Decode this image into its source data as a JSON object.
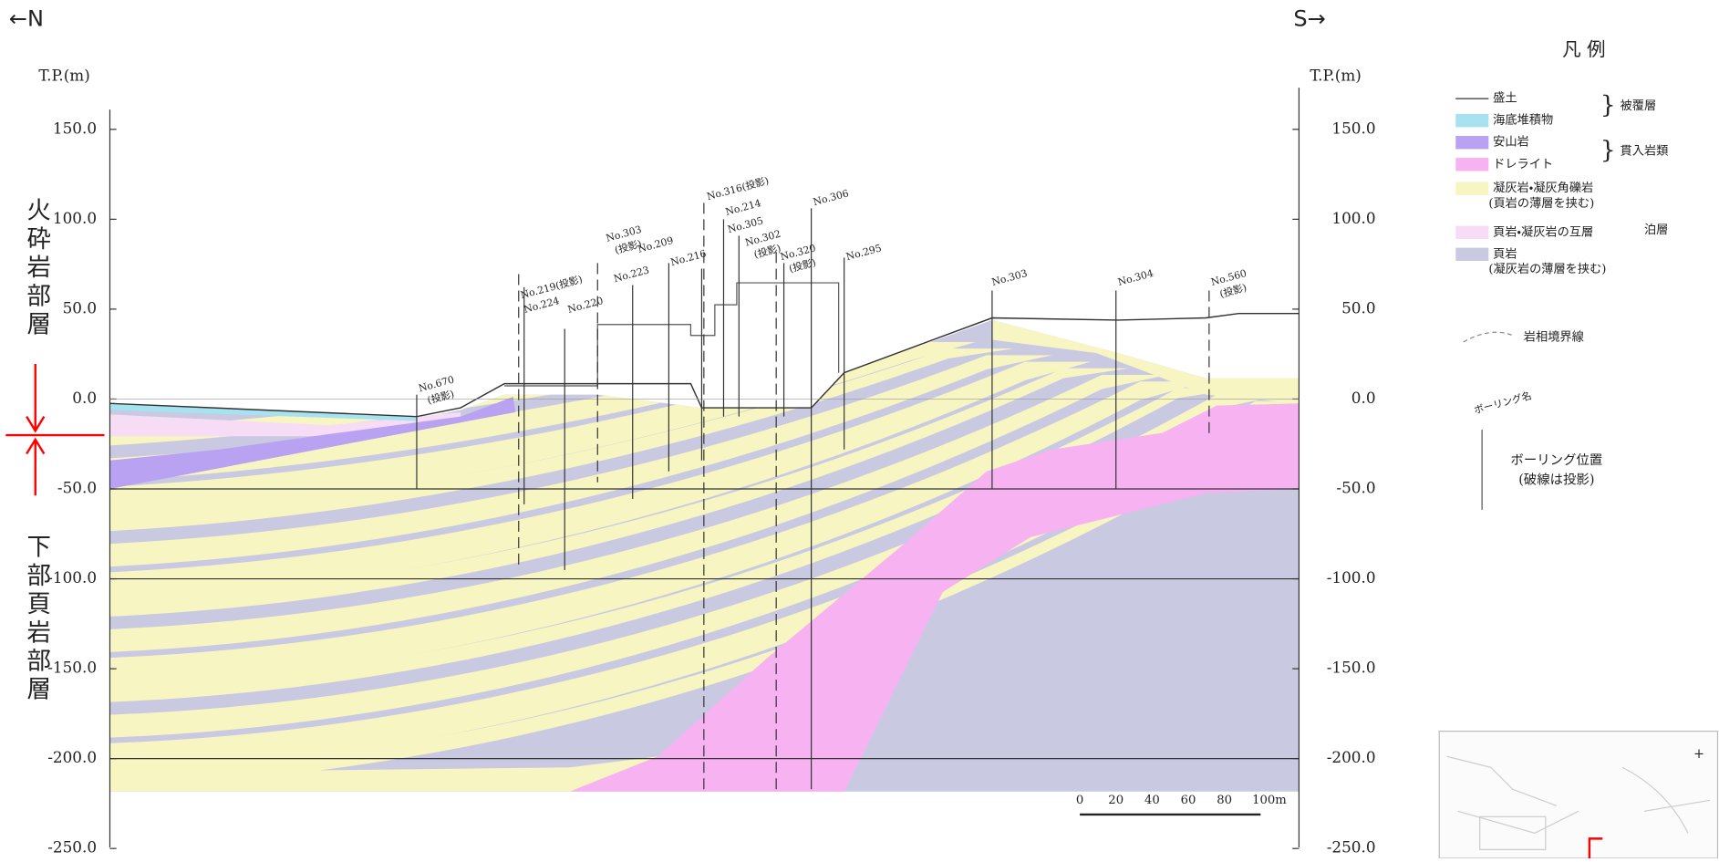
{
  "header": {
    "north": "←N",
    "south": "S→"
  },
  "axes": {
    "left_unit": "T.P.(m)",
    "right_unit": "T.P.(m)",
    "ticks": [
      "150.0",
      "100.0",
      "50.0",
      "0.0",
      "-50.0",
      "-100.0",
      "-150.0",
      "-200.0",
      "-250.0"
    ]
  },
  "side_labels": {
    "upper": "火砕岩部層",
    "lower": "下部頁岩部層"
  },
  "boreholes": [
    {
      "label": "No.670",
      "note": "(投影)"
    },
    {
      "label": "No.219(投影)"
    },
    {
      "label": "No.224"
    },
    {
      "label": "No.220"
    },
    {
      "label": "No.303",
      "note": "(投影)"
    },
    {
      "label": "No.223"
    },
    {
      "label": "No.209"
    },
    {
      "label": "No.216"
    },
    {
      "label": "No.316(投影)"
    },
    {
      "label": "No.214"
    },
    {
      "label": "No.305"
    },
    {
      "label": "No.302",
      "note": "(投影)"
    },
    {
      "label": "No.320",
      "note": "(投影)"
    },
    {
      "label": "No.306"
    },
    {
      "label": "No.295"
    },
    {
      "label": "No.303"
    },
    {
      "label": "No.304"
    },
    {
      "label": "No.560",
      "note": "(投影)"
    }
  ],
  "legend": {
    "title": "凡 例",
    "items": [
      {
        "label": "盛土"
      },
      {
        "label": "海底堆積物"
      },
      {
        "label": "安山岩"
      },
      {
        "label": "ドレライト"
      },
      {
        "label": "凝灰岩・凝灰角礫岩",
        "sub": "(頁岩の薄層を挟む)"
      },
      {
        "label": "頁岩・凝灰岩の互層"
      },
      {
        "label": "頁岩",
        "sub": "(凝灰岩の薄層を挟む)"
      }
    ],
    "groups": [
      "被覆層",
      "貫入岩類",
      "泊層"
    ],
    "boundary": "岩相境界線",
    "borehole_name": "ボーリング名",
    "borehole_position": "ボーリング位置",
    "borehole_note": "(破線は投影)"
  },
  "scale": [
    "0",
    "20",
    "40",
    "60",
    "80",
    "100m"
  ]
}
